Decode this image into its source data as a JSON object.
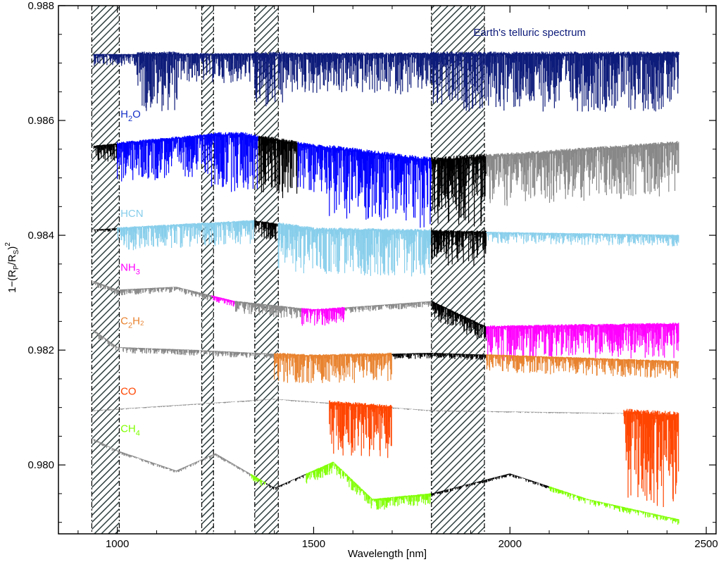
{
  "chart_data": {
    "type": "line",
    "xlabel": "Wavelength [nm]",
    "ylabel": "1−(R",
    "ylabel_sub1": "P",
    "ylabel_mid": "/R",
    "ylabel_sub2": "S",
    "ylabel_end": ")",
    "ylabel_sup": "2",
    "xlim": [
      850,
      2525
    ],
    "ylim": [
      0.9788,
      0.988
    ],
    "xticks": [
      {
        "value": 1000,
        "label": "1000"
      },
      {
        "value": 1500,
        "label": "1500"
      },
      {
        "value": 2000,
        "label": "2000"
      },
      {
        "value": 2500,
        "label": "2500"
      }
    ],
    "yticks": [
      {
        "value": 0.98,
        "label": "0.980"
      },
      {
        "value": 0.982,
        "label": "0.982"
      },
      {
        "value": 0.984,
        "label": "0.984"
      },
      {
        "value": 0.986,
        "label": "0.986"
      },
      {
        "value": 0.988,
        "label": "0.988"
      }
    ],
    "hatched_regions": [
      [
        935,
        1005
      ],
      [
        1215,
        1245
      ],
      [
        1350,
        1410
      ],
      [
        1800,
        1935
      ]
    ],
    "annotations": [
      {
        "id": "telluric",
        "text": "Earth's telluric spectrum",
        "x": 2050,
        "y": 0.98747,
        "color": "#0d1b7a"
      },
      {
        "id": "h2o",
        "text": "H",
        "sub": "2",
        "after": "O",
        "x": 1008,
        "y": 0.98605,
        "color": "#1530c8"
      },
      {
        "id": "hcn",
        "text": "HCN",
        "sub": "",
        "after": "",
        "x": 1008,
        "y": 0.98432,
        "color": "#87ceeb"
      },
      {
        "id": "nh3",
        "text": "NH",
        "sub": "3",
        "after": "",
        "x": 1008,
        "y": 0.98338,
        "color": "#ff00ff"
      },
      {
        "id": "c2h2",
        "text": "C",
        "sub": "2",
        "after": "H₂",
        "x": 1008,
        "y": 0.98245,
        "color": "#e8822e"
      },
      {
        "id": "co",
        "text": "CO",
        "sub": "",
        "after": "",
        "x": 1008,
        "y": 0.98122,
        "color": "#ff4500"
      },
      {
        "id": "ch4",
        "text": "CH",
        "sub": "4",
        "after": "",
        "x": 1008,
        "y": 0.98057,
        "color": "#7fff00"
      }
    ],
    "series": [
      {
        "name": "Earth's telluric spectrum",
        "color": "#0d1b7a",
        "base": 0.98715,
        "segments": [
          {
            "x0": 940,
            "x1": 1050,
            "depth": 0.0002
          },
          {
            "x0": 1050,
            "x1": 1160,
            "depth": 0.001
          },
          {
            "x0": 1160,
            "x1": 1350,
            "depth": 0.0005
          },
          {
            "x0": 1350,
            "x1": 1430,
            "depth": 0.001
          },
          {
            "x0": 1430,
            "x1": 1800,
            "depth": 0.0007
          },
          {
            "x0": 1800,
            "x1": 1950,
            "depth": 0.001
          },
          {
            "x0": 1950,
            "x1": 2430,
            "depth": 0.001
          }
        ]
      },
      {
        "name": "H2O",
        "baseline": [
          [
            940,
            0.98555
          ],
          [
            1250,
            0.98575
          ],
          [
            1320,
            0.98575
          ],
          [
            1500,
            0.98555
          ],
          [
            1800,
            0.9853
          ],
          [
            2430,
            0.9856
          ]
        ],
        "segments": [
          {
            "x0": 940,
            "x1": 1000,
            "color": "#000000",
            "depth": 0.0003
          },
          {
            "x0": 1000,
            "x1": 1240,
            "color": "#0000ff",
            "depth": 0.0007
          },
          {
            "x0": 1240,
            "x1": 1360,
            "color": "#0000ff",
            "depth": 0.001
          },
          {
            "x0": 1360,
            "x1": 1460,
            "color": "#000000",
            "depth": 0.001
          },
          {
            "x0": 1460,
            "x1": 1540,
            "color": "#0000ff",
            "depth": 0.0008
          },
          {
            "x0": 1540,
            "x1": 1800,
            "color": "#0000ff",
            "depth": 0.0012
          },
          {
            "x0": 1800,
            "x1": 1940,
            "color": "#000000",
            "depth": 0.0012
          },
          {
            "x0": 1940,
            "x1": 2430,
            "color": "#888888",
            "depth": 0.0009
          }
        ]
      },
      {
        "name": "HCN",
        "baseline": [
          [
            940,
            0.9841
          ],
          [
            1350,
            0.98425
          ],
          [
            1500,
            0.9841
          ],
          [
            2430,
            0.984
          ]
        ],
        "segments": [
          {
            "x0": 940,
            "x1": 1000,
            "color": "#000000",
            "depth": 5e-05
          },
          {
            "x0": 1000,
            "x1": 1350,
            "color": "#87ceeb",
            "depth": 0.0004
          },
          {
            "x0": 1350,
            "x1": 1410,
            "color": "#000000",
            "depth": 0.0003
          },
          {
            "x0": 1410,
            "x1": 1800,
            "color": "#87ceeb",
            "depth": 0.0008
          },
          {
            "x0": 1800,
            "x1": 1940,
            "color": "#000000",
            "depth": 0.0006
          },
          {
            "x0": 1940,
            "x1": 2430,
            "color": "#87ceeb",
            "depth": 0.0002
          }
        ]
      },
      {
        "name": "NH3",
        "baseline": [
          [
            940,
            0.9832
          ],
          [
            1000,
            0.98305
          ],
          [
            1150,
            0.9831
          ],
          [
            1300,
            0.98285
          ],
          [
            1500,
            0.9827
          ],
          [
            1800,
            0.98285
          ],
          [
            1940,
            0.9824
          ],
          [
            2430,
            0.98245
          ]
        ],
        "segments": [
          {
            "x0": 940,
            "x1": 1240,
            "color": "#888888",
            "depth": 0.0001
          },
          {
            "x0": 1240,
            "x1": 1300,
            "color": "#ff00ff",
            "depth": 0.0001
          },
          {
            "x0": 1300,
            "x1": 1470,
            "color": "#888888",
            "depth": 0.0002
          },
          {
            "x0": 1470,
            "x1": 1580,
            "color": "#ff00ff",
            "depth": 0.0003
          },
          {
            "x0": 1580,
            "x1": 1800,
            "color": "#888888",
            "depth": 0.0001
          },
          {
            "x0": 1800,
            "x1": 1940,
            "color": "#000000",
            "depth": 0.0003
          },
          {
            "x0": 1940,
            "x1": 2430,
            "color": "#ff00ff",
            "depth": 0.0006
          }
        ]
      },
      {
        "name": "C2H2",
        "baseline": [
          [
            940,
            0.98235
          ],
          [
            1000,
            0.98205
          ],
          [
            1200,
            0.982
          ],
          [
            1500,
            0.9819
          ],
          [
            1800,
            0.98195
          ],
          [
            2430,
            0.9818
          ]
        ],
        "segments": [
          {
            "x0": 940,
            "x1": 1400,
            "color": "#888888",
            "depth": 0.0001
          },
          {
            "x0": 1400,
            "x1": 1700,
            "color": "#e8822e",
            "depth": 0.0005
          },
          {
            "x0": 1700,
            "x1": 1940,
            "color": "#000000",
            "depth": 0.0001
          },
          {
            "x0": 1940,
            "x1": 2430,
            "color": "#e8822e",
            "depth": 0.0003
          }
        ]
      },
      {
        "name": "CO",
        "baseline": [
          [
            940,
            0.98095
          ],
          [
            1400,
            0.98115
          ],
          [
            1800,
            0.98095
          ],
          [
            2300,
            0.9809
          ],
          [
            2430,
            0.98085
          ]
        ],
        "segments": [
          {
            "x0": 940,
            "x1": 1540,
            "color": "#888888",
            "depth": 2e-05
          },
          {
            "x0": 1540,
            "x1": 1700,
            "color": "#ff4500",
            "depth": 0.0009
          },
          {
            "x0": 1700,
            "x1": 2290,
            "color": "#888888",
            "depth": 2e-05
          },
          {
            "x0": 2290,
            "x1": 2430,
            "color": "#ff4500",
            "depth": 0.0016
          }
        ]
      },
      {
        "name": "CH4",
        "baseline": [
          [
            940,
            0.98045
          ],
          [
            1000,
            0.98025
          ],
          [
            1150,
            0.9799
          ],
          [
            1250,
            0.9802
          ],
          [
            1400,
            0.9796
          ],
          [
            1550,
            0.98005
          ],
          [
            1650,
            0.9794
          ],
          [
            1800,
            0.9795
          ],
          [
            2000,
            0.97985
          ],
          [
            2200,
            0.9794
          ],
          [
            2430,
            0.97905
          ]
        ],
        "segments": [
          {
            "x0": 940,
            "x1": 1340,
            "color": "#888888",
            "depth": 5e-05
          },
          {
            "x0": 1340,
            "x1": 1380,
            "color": "#7fff00",
            "depth": 0.0001
          },
          {
            "x0": 1380,
            "x1": 1480,
            "color": "#000000",
            "depth": 5e-05
          },
          {
            "x0": 1480,
            "x1": 1800,
            "color": "#7fff00",
            "depth": 0.0002
          },
          {
            "x0": 1800,
            "x1": 2100,
            "color": "#000000",
            "depth": 5e-05
          },
          {
            "x0": 2100,
            "x1": 2430,
            "color": "#7fff00",
            "depth": 0.0001
          }
        ]
      }
    ]
  }
}
